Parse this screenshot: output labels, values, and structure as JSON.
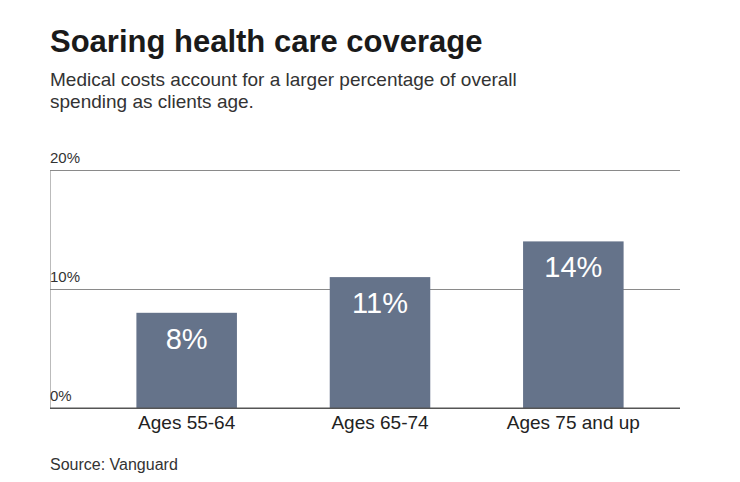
{
  "chart_data": {
    "type": "bar",
    "title": "Soaring health care coverage",
    "subtitle": "Medical costs account for a larger percentage of overall spending as clients age.",
    "source": "Source: Vanguard",
    "categories": [
      "Ages 55-64",
      "Ages 65-74",
      "Ages 75 and up"
    ],
    "values": [
      8,
      11,
      14
    ],
    "value_labels": [
      "8%",
      "11%",
      "14%"
    ],
    "data_labels": true,
    "color": "#65738a",
    "ylim": [
      0,
      20
    ],
    "yticks": [
      {
        "value": 0,
        "label": "0%"
      },
      {
        "value": 10,
        "label": "10%"
      },
      {
        "value": 20,
        "label": "20%"
      }
    ],
    "grid": true
  }
}
